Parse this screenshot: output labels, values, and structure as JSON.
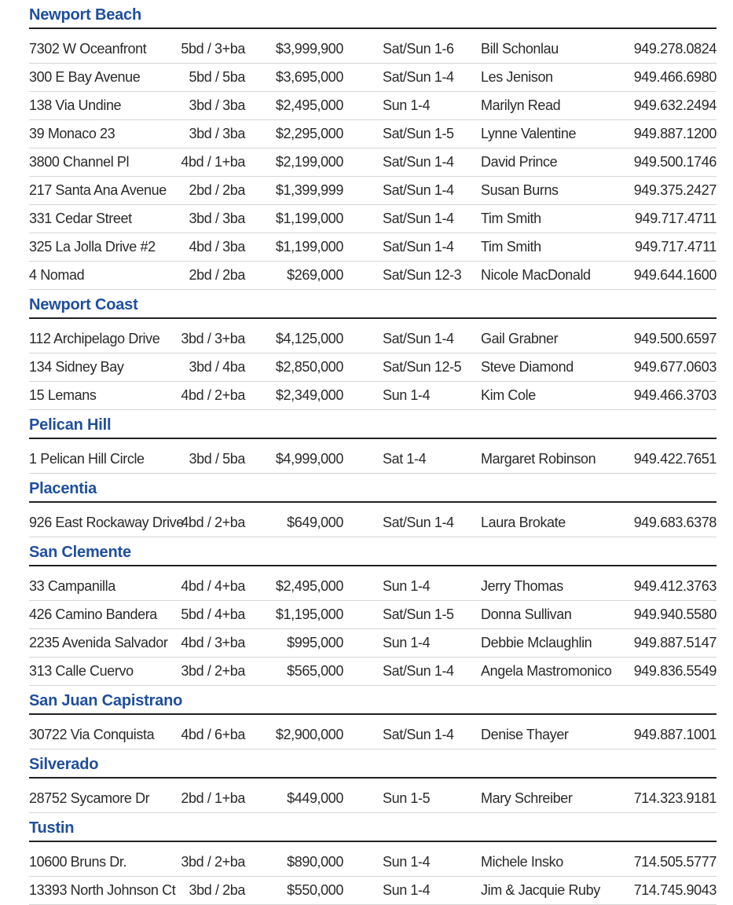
{
  "colors": {
    "heading": "#1f4e9c",
    "rule": "#222222",
    "separator": "#d6d6d6"
  },
  "sections": [
    {
      "name": "Newport Beach",
      "rows": [
        [
          "7302 W Oceanfront",
          "5bd / 3+ba",
          "$3,999,900",
          "Sat/Sun 1-6",
          "Bill Schonlau",
          "949.278.0824"
        ],
        [
          "300 E Bay Avenue",
          "5bd / 5ba",
          "$3,695,000",
          "Sat/Sun 1-4",
          "Les Jenison",
          "949.466.6980"
        ],
        [
          "138 Via Undine",
          "3bd / 3ba",
          "$2,495,000",
          "Sun 1-4",
          "Marilyn Read",
          "949.632.2494"
        ],
        [
          "39 Monaco 23",
          "3bd / 3ba",
          "$2,295,000",
          "Sat/Sun 1-5",
          "Lynne Valentine",
          "949.887.1200"
        ],
        [
          "3800 Channel Pl",
          "4bd / 1+ba",
          "$2,199,000",
          "Sat/Sun 1-4",
          "David Prince",
          "949.500.1746"
        ],
        [
          "217 Santa Ana Avenue",
          "2bd / 2ba",
          "$1,399,999",
          "Sat/Sun 1-4",
          "Susan Burns",
          "949.375.2427"
        ],
        [
          "331 Cedar Street",
          "3bd / 3ba",
          "$1,199,000",
          "Sat/Sun 1-4",
          "Tim Smith",
          "949.717.4711"
        ],
        [
          "325 La Jolla Drive #2",
          "4bd / 3ba",
          "$1,199,000",
          "Sat/Sun 1-4",
          "Tim Smith",
          "949.717.4711"
        ],
        [
          "4 Nomad",
          "2bd / 2ba",
          "$269,000",
          "Sat/Sun 12-3",
          "Nicole MacDonald",
          "949.644.1600"
        ]
      ]
    },
    {
      "name": "Newport Coast",
      "rows": [
        [
          "112 Archipelago Drive",
          "3bd / 3+ba",
          "$4,125,000",
          "Sat/Sun 1-4",
          "Gail Grabner",
          "949.500.6597"
        ],
        [
          "134 Sidney Bay",
          "3bd / 4ba",
          "$2,850,000",
          "Sat/Sun 12-5",
          "Steve Diamond",
          "949.677.0603"
        ],
        [
          "15 Lemans",
          "4bd / 2+ba",
          "$2,349,000",
          "Sun 1-4",
          "Kim Cole",
          "949.466.3703"
        ]
      ]
    },
    {
      "name": "Pelican Hill",
      "rows": [
        [
          "1 Pelican Hill Circle",
          "3bd / 5ba",
          "$4,999,000",
          "Sat 1-4",
          "Margaret Robinson",
          "949.422.7651"
        ]
      ]
    },
    {
      "name": "Placentia",
      "rows": [
        [
          "926 East Rockaway Drive",
          "4bd / 2+ba",
          "$649,000",
          "Sat/Sun 1-4",
          "Laura Brokate",
          "949.683.6378"
        ]
      ]
    },
    {
      "name": "San Clemente",
      "rows": [
        [
          "33 Campanilla",
          "4bd / 4+ba",
          "$2,495,000",
          "Sun 1-4",
          "Jerry Thomas",
          "949.412.3763"
        ],
        [
          "426 Camino Bandera",
          "5bd / 4+ba",
          "$1,195,000",
          "Sat/Sun 1-5",
          "Donna Sullivan",
          "949.940.5580"
        ],
        [
          "2235 Avenida Salvador",
          "4bd / 3+ba",
          "$995,000",
          "Sun 1-4",
          "Debbie Mclaughlin",
          "949.887.5147"
        ],
        [
          "313 Calle Cuervo",
          "3bd / 2+ba",
          "$565,000",
          "Sat/Sun 1-4",
          "Angela Mastromonico",
          "949.836.5549"
        ]
      ]
    },
    {
      "name": "San Juan Capistrano",
      "rows": [
        [
          "30722 Via Conquista",
          "4bd / 6+ba",
          "$2,900,000",
          "Sat/Sun 1-4",
          "Denise Thayer",
          "949.887.1001"
        ]
      ]
    },
    {
      "name": "Silverado",
      "rows": [
        [
          "28752 Sycamore Dr",
          "2bd / 1+ba",
          "$449,000",
          "Sun 1-5",
          "Mary Schreiber",
          "714.323.9181"
        ]
      ]
    },
    {
      "name": "Tustin",
      "rows": [
        [
          "10600 Bruns Dr.",
          "3bd / 2+ba",
          "$890,000",
          "Sun 1-4",
          "Michele Insko",
          "714.505.5777"
        ],
        [
          "13393 North Johnson Ct",
          "3bd / 2ba",
          "$550,000",
          "Sun 1-4",
          "Jim & Jacquie Ruby",
          "714.745.9043"
        ]
      ]
    }
  ]
}
